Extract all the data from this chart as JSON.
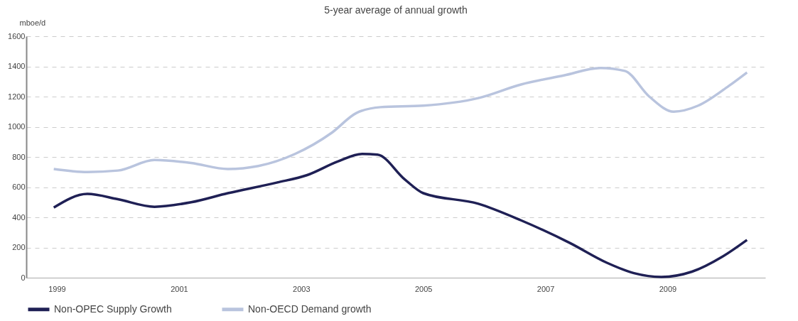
{
  "chart_data": {
    "type": "line",
    "title": "5-year average of annual growth",
    "ylabel": "mboe/d",
    "x": [
      1998.95,
      1999.5,
      2000,
      2000.6,
      2001.2,
      2001.8,
      2002.6,
      2003.1,
      2003.6,
      2004,
      2004.25,
      2004.7,
      2005,
      2005.9,
      2006.6,
      2007.4,
      2008,
      2008.45,
      2008.9,
      2009.4,
      2009.9,
      2010.3
    ],
    "series": [
      {
        "name": "Non-OPEC Supply Growth",
        "color": "#1f2055",
        "values": [
          465,
          555,
          520,
          470,
          500,
          560,
          630,
          680,
          770,
          820,
          815,
          650,
          560,
          490,
          380,
          230,
          100,
          30,
          5,
          40,
          140,
          250
        ]
      },
      {
        "name": "Non-OECD Demand growth",
        "color": "#b9c4de",
        "x": [
          1998.95,
          1999.5,
          2000,
          2000.6,
          2001.2,
          2001.8,
          2002.3,
          2002.9,
          2003.5,
          2003.9,
          2004.3,
          2005,
          2005.9,
          2006.6,
          2007.3,
          2007.9,
          2008.3,
          2008.7,
          2009.1,
          2009.5,
          2010,
          2010.3
        ],
        "values": [
          720,
          700,
          710,
          780,
          760,
          720,
          740,
          820,
          960,
          1090,
          1130,
          1140,
          1190,
          1280,
          1340,
          1390,
          1370,
          1200,
          1100,
          1140,
          1270,
          1360
        ]
      }
    ],
    "xlim": [
      1998.5,
      2010.6
    ],
    "xticks": [
      1999,
      2001,
      2003,
      2005,
      2007,
      2009
    ],
    "ylim": [
      0,
      1600
    ],
    "yticks": [
      0,
      200,
      400,
      600,
      800,
      1000,
      1200,
      1400,
      1600
    ],
    "grid": "y",
    "legend": "bottom",
    "marker": "none",
    "line_style": "solid"
  }
}
